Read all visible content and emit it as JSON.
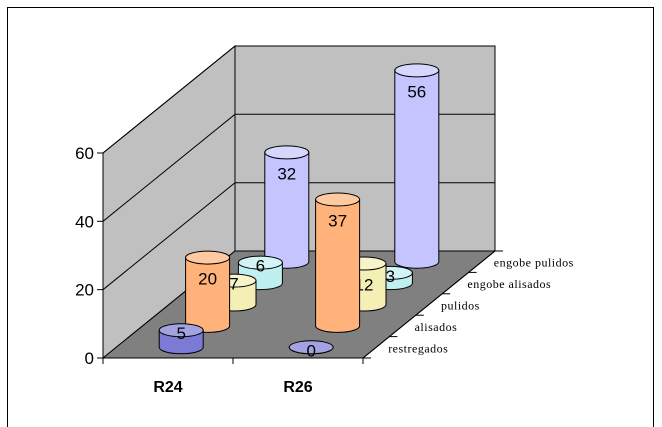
{
  "chart_data": {
    "type": "bar3d",
    "categories": [
      "R24",
      "R26"
    ],
    "series": [
      {
        "name": "restregados",
        "values": [
          5,
          0
        ],
        "color": "#7b7bd6"
      },
      {
        "name": "alisados",
        "values": [
          20,
          37
        ],
        "color": "#ffb27a"
      },
      {
        "name": "pulidos",
        "values": [
          7,
          12
        ],
        "color": "#f4efb4"
      },
      {
        "name": "engobe alisados",
        "values": [
          6,
          3
        ],
        "color": "#bfeff0"
      },
      {
        "name": "engobe pulidos",
        "values": [
          32,
          56
        ],
        "color": "#c4c4ff"
      }
    ],
    "yticks": [
      0,
      20,
      40,
      60
    ],
    "ylim": [
      0,
      60
    ],
    "grid": true,
    "title": "",
    "xlabel": "",
    "ylabel": ""
  }
}
